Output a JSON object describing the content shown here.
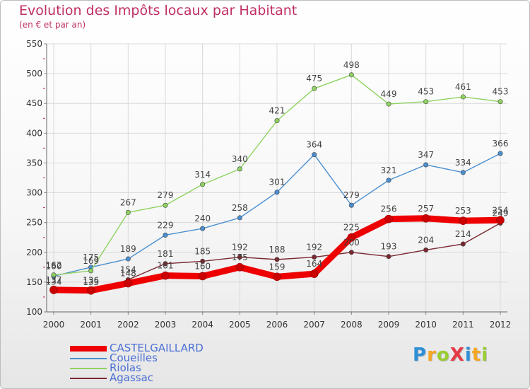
{
  "header": {
    "title": "Evolution des Impôts locaux par Habitant",
    "subtitle": "(en € et par an)"
  },
  "brand": {
    "text": "ProXiti",
    "letters": [
      {
        "ch": "P",
        "color": "#2d8fd6"
      },
      {
        "ch": "r",
        "color": "#f5a623"
      },
      {
        "ch": "o",
        "color": "#9acd32"
      },
      {
        "ch": "X",
        "color": "#e63946"
      },
      {
        "ch": "i",
        "color": "#2d8fd6"
      },
      {
        "ch": "t",
        "color": "#f5a623"
      },
      {
        "ch": "i",
        "color": "#9acd32"
      }
    ]
  },
  "chart_data": {
    "type": "line",
    "title": "Evolution des Impôts locaux par Habitant",
    "subtitle": "(en € et par an)",
    "xlabel": "",
    "ylabel": "",
    "x": [
      "2000",
      "2001",
      "2002",
      "2003",
      "2004",
      "2005",
      "2006",
      "2007",
      "2008",
      "2009",
      "2010",
      "2011",
      "2012"
    ],
    "ylim": [
      100,
      550
    ],
    "yticks": [
      100,
      150,
      200,
      250,
      300,
      350,
      400,
      450,
      500,
      550
    ],
    "grid": true,
    "legend_position": "bottom-left",
    "series": [
      {
        "name": "CASTELGAILLARD",
        "color": "#ee0000",
        "thick": true,
        "values": [
          137,
          136,
          148,
          161,
          160,
          175,
          159,
          164,
          225,
          256,
          257,
          253,
          254
        ],
        "labels": [
          "137",
          "136",
          "148",
          "161",
          "160",
          "175",
          "159",
          "164",
          "225",
          "256",
          "257",
          "253",
          "254"
        ]
      },
      {
        "name": "Coueilles",
        "color": "#4b8fd0",
        "thick": false,
        "values": [
          160,
          175,
          189,
          229,
          240,
          258,
          301,
          364,
          279,
          321,
          347,
          334,
          366
        ],
        "labels": [
          "160",
          "175",
          "189",
          "229",
          "240",
          "258",
          "301",
          "364",
          "279",
          "321",
          "347",
          "334",
          "366"
        ]
      },
      {
        "name": "Riolas",
        "color": "#8ed35f",
        "thick": false,
        "values": [
          162,
          169,
          267,
          279,
          314,
          340,
          421,
          475,
          498,
          449,
          453,
          461,
          453
        ],
        "labels": [
          "162",
          "169",
          "267",
          "279",
          "314",
          "340",
          "421",
          "475",
          "498",
          "449",
          "453",
          "461",
          "453"
        ]
      },
      {
        "name": "Agassac",
        "color": "#7a2830",
        "thick": false,
        "values": [
          134,
          133,
          154,
          181,
          185,
          192,
          188,
          192,
          200,
          193,
          204,
          214,
          249
        ],
        "labels": [
          "134",
          "133",
          "154",
          "181",
          "185",
          "192",
          "188",
          "192",
          "200",
          "193",
          "204",
          "214",
          "249"
        ]
      }
    ]
  }
}
